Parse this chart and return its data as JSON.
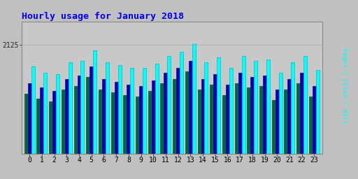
{
  "title": "Hourly usage for January 2018",
  "xlabel_ticks": [
    "0",
    "1",
    "2",
    "3",
    "4",
    "5",
    "6",
    "7",
    "8",
    "9",
    "10",
    "11",
    "12",
    "13",
    "14",
    "15",
    "16",
    "17",
    "18",
    "19",
    "20",
    "21",
    "22",
    "23"
  ],
  "ytick_label": "2125",
  "ytick_val": 2125,
  "pages": [
    1980,
    1940,
    1930,
    2010,
    2020,
    2090,
    2010,
    1990,
    1970,
    1970,
    2000,
    2050,
    2080,
    2130,
    2010,
    2040,
    1970,
    2050,
    2020,
    2030,
    1940,
    2010,
    2050,
    1960
  ],
  "files": [
    1870,
    1840,
    1820,
    1900,
    1920,
    1980,
    1900,
    1880,
    1860,
    1850,
    1890,
    1940,
    1970,
    2020,
    1900,
    1930,
    1860,
    1940,
    1910,
    1920,
    1830,
    1900,
    1940,
    1850
  ],
  "hits": [
    1800,
    1770,
    1750,
    1830,
    1850,
    1910,
    1830,
    1810,
    1790,
    1780,
    1820,
    1870,
    1900,
    1950,
    1830,
    1860,
    1790,
    1870,
    1840,
    1850,
    1760,
    1830,
    1870,
    1780
  ],
  "bar_width": 0.28,
  "color_cyan": "#00ffff",
  "color_blue": "#0000bb",
  "color_green": "#006644",
  "color_cyan_edge": "#00aaaa",
  "color_blue_edge": "#000088",
  "color_green_edge": "#004422",
  "bg_color": "#c0c0c0",
  "plot_bg": "#c8c8c8",
  "title_color": "#0000ee",
  "ymin": 1400,
  "ymax": 2280,
  "title_fontsize": 9.5,
  "tick_fontsize": 7
}
